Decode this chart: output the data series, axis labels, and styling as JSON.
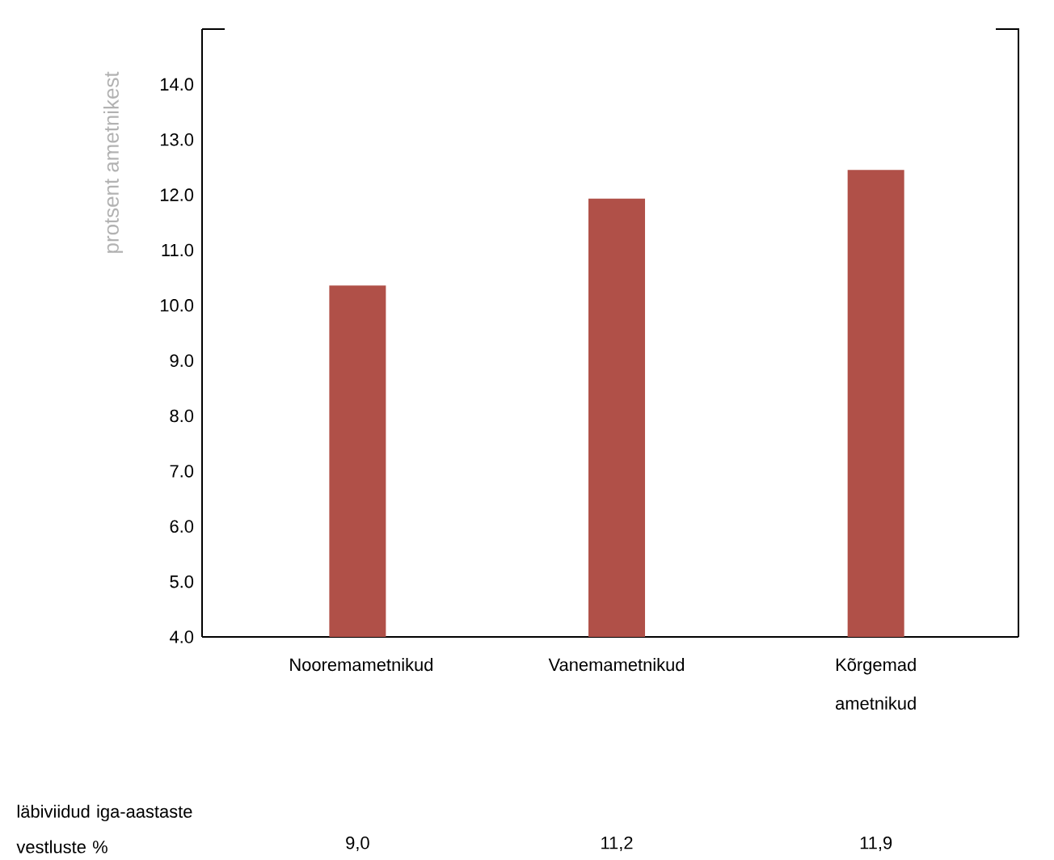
{
  "chart_data": {
    "type": "bar",
    "ylabel": "protsent ametnikest",
    "categories": [
      "Nooremametnikud",
      "Vanemametnikud",
      "Kõrgemad ametnikud"
    ],
    "values": [
      10.36,
      11.93,
      12.45
    ],
    "color": "#b05048",
    "ylim": [
      4,
      15
    ],
    "yticks": [
      {
        "value": 4,
        "label": "4.0"
      },
      {
        "value": 5,
        "label": "5.0"
      },
      {
        "value": 6,
        "label": "6.0"
      },
      {
        "value": 7,
        "label": "7.0"
      },
      {
        "value": 8,
        "label": "8.0"
      },
      {
        "value": 9,
        "label": "9.0"
      },
      {
        "value": 10,
        "label": "10.0"
      },
      {
        "value": 11,
        "label": "11.0"
      },
      {
        "value": 12,
        "label": "12.0"
      },
      {
        "value": 13,
        "label": "13.0"
      },
      {
        "value": 14,
        "label": "14.0"
      }
    ],
    "grid": false,
    "annotations": [
      "läbiviidud iga-aastaste vestluste %",
      "9,0",
      "11,2",
      "11,9"
    ]
  }
}
